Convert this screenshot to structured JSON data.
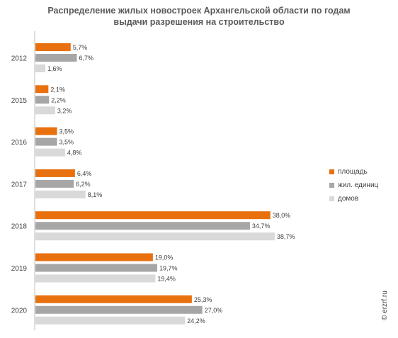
{
  "chart_data": {
    "type": "bar",
    "orientation": "horizontal",
    "title_lines": [
      "Распределение жилых новостроек Архангельской области по годам",
      "выдачи разрешения на строительство"
    ],
    "categories": [
      "2012",
      "2015",
      "2016",
      "2017",
      "2018",
      "2019",
      "2020"
    ],
    "series": [
      {
        "name": "площадь",
        "color": "#E8700E",
        "values": [
          5.7,
          2.1,
          3.5,
          6.4,
          38.0,
          19.0,
          25.3
        ],
        "labels": [
          "5,7%",
          "2,1%",
          "3,5%",
          "6,4%",
          "38,0%",
          "19,0%",
          "25,3%"
        ]
      },
      {
        "name": "жил. единиц",
        "color": "#A6A6A6",
        "values": [
          6.7,
          2.2,
          3.5,
          6.2,
          34.7,
          19.7,
          27.0
        ],
        "labels": [
          "6,7%",
          "2,2%",
          "3,5%",
          "6,2%",
          "34,7%",
          "19,7%",
          "27,0%"
        ]
      },
      {
        "name": "домов",
        "color": "#D9D9D9",
        "values": [
          1.6,
          3.2,
          4.8,
          8.1,
          38.7,
          19.4,
          24.2
        ],
        "labels": [
          "1,6%",
          "3,2%",
          "4,8%",
          "8,1%",
          "38,7%",
          "19,4%",
          "24,2%"
        ]
      }
    ],
    "xlim": [
      0,
      40
    ],
    "legend_position": "right",
    "grid": false
  },
  "watermark": "© erzrf.ru"
}
